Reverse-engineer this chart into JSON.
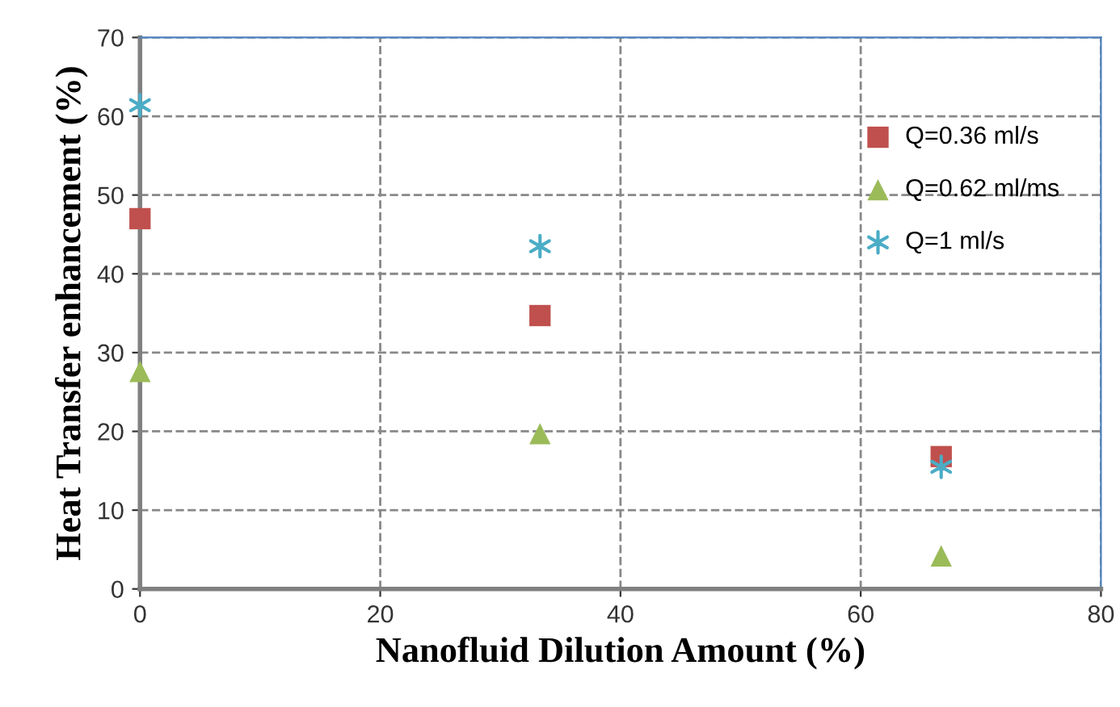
{
  "chart_data": {
    "type": "scatter",
    "xlabel": "Nanofluid Dilution Amount (%)",
    "ylabel": "Heat Transfer enhancement (%)",
    "xlim": [
      0,
      80
    ],
    "xticks": [
      0,
      20,
      40,
      60,
      80
    ],
    "ylim": [
      0,
      70
    ],
    "yticks": [
      0,
      10,
      20,
      30,
      40,
      50,
      60,
      70
    ],
    "grid": true,
    "legend": "top right",
    "series": [
      {
        "name": "Q=0.36 ml/s",
        "color": "#c0504d",
        "marker": "square",
        "x": [
          0,
          33.3,
          66.7
        ],
        "values": [
          47,
          34.7,
          16.8
        ]
      },
      {
        "name": "Q=0.62 ml/ms",
        "color": "#9bbb59",
        "marker": "triangle",
        "x": [
          0,
          33.3,
          66.7
        ],
        "values": [
          27.6,
          19.7,
          4.2
        ]
      },
      {
        "name": "Q=1 ml/s",
        "color": "#4bacc6",
        "marker": "cross",
        "x": [
          0,
          33.3,
          66.7
        ],
        "values": [
          61.4,
          43.5,
          15.5
        ]
      }
    ]
  }
}
